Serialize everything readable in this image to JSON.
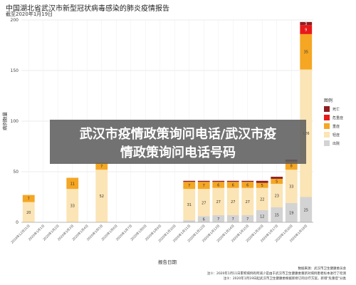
{
  "header": {
    "title": "中国湖北省武汉市新型冠状病毒感染的肺炎疫情报告",
    "subtitle": "截至2020年1月19日"
  },
  "overlay": {
    "line1": "武汉市疫情政策询问电话/武汉市疫",
    "line2": "情政策询问电话号码"
  },
  "footer": {
    "source": "数据来源：武汉市卫生健康委员会",
    "note1": "注①：2020年1月11日累积病例有所减少是由于武汉市卫生健康委重新对病例患者标本进行了检测",
    "note2": "注②：2020年1月19日起武汉市卫生健康委根据新修订的诊疗方案，新增\"危重症\"分类"
  },
  "chart_data": {
    "type": "bar",
    "stacked": true,
    "xlabel": "报告日期",
    "ylabel": "病例数量",
    "ylim": [
      0,
      200
    ],
    "yticks": [
      0,
      50,
      100,
      150,
      200
    ],
    "grid": true,
    "legend_title": "图例",
    "legend_position": "right",
    "categories": [
      "2019年12月31日",
      "2020年1月1日",
      "2020年1月2日",
      "2020年1月3日",
      "2020年1月4日",
      "2020年1月5日",
      "2020年1月6日",
      "2020年1月7日",
      "2020年1月8日",
      "2020年1月9日",
      "2020年1月10日",
      "2020年1月11日",
      "2020年1月12日",
      "2020年1月13日",
      "2020年1月14日",
      "2020年1月15日",
      "2020年1月16日",
      "2020年1月17日",
      "2020年1月18日",
      "2020年1月19日"
    ],
    "series": [
      {
        "name": "出院",
        "color": "#d3d3d3",
        "values": [
          0,
          0,
          0,
          0,
          0,
          0,
          0,
          0,
          0,
          0,
          0,
          2,
          6,
          7,
          7,
          7,
          12,
          15,
          19,
          25
        ]
      },
      {
        "name": "轻症",
        "color": "#fbe4b5",
        "values": [
          20,
          0,
          0,
          33,
          0,
          52,
          0,
          0,
          0,
          0,
          0,
          31,
          27,
          27,
          27,
          27,
          22,
          23,
          33,
          126
        ]
      },
      {
        "name": "重症",
        "color": "#f5a623",
        "values": [
          7,
          0,
          0,
          11,
          0,
          7,
          0,
          0,
          0,
          0,
          0,
          7,
          7,
          6,
          6,
          6,
          5,
          5,
          8,
          35
        ]
      },
      {
        "name": "危重症",
        "color": "#e8191a",
        "values": [
          0,
          0,
          0,
          0,
          0,
          0,
          0,
          0,
          0,
          0,
          0,
          0,
          0,
          0,
          0,
          0,
          0,
          0,
          0,
          9
        ]
      },
      {
        "name": "死亡",
        "color": "#8f1d21",
        "values": [
          0,
          0,
          0,
          0,
          0,
          0,
          0,
          0,
          0,
          0,
          0,
          1,
          1,
          1,
          1,
          1,
          2,
          2,
          2,
          3
        ]
      }
    ]
  }
}
